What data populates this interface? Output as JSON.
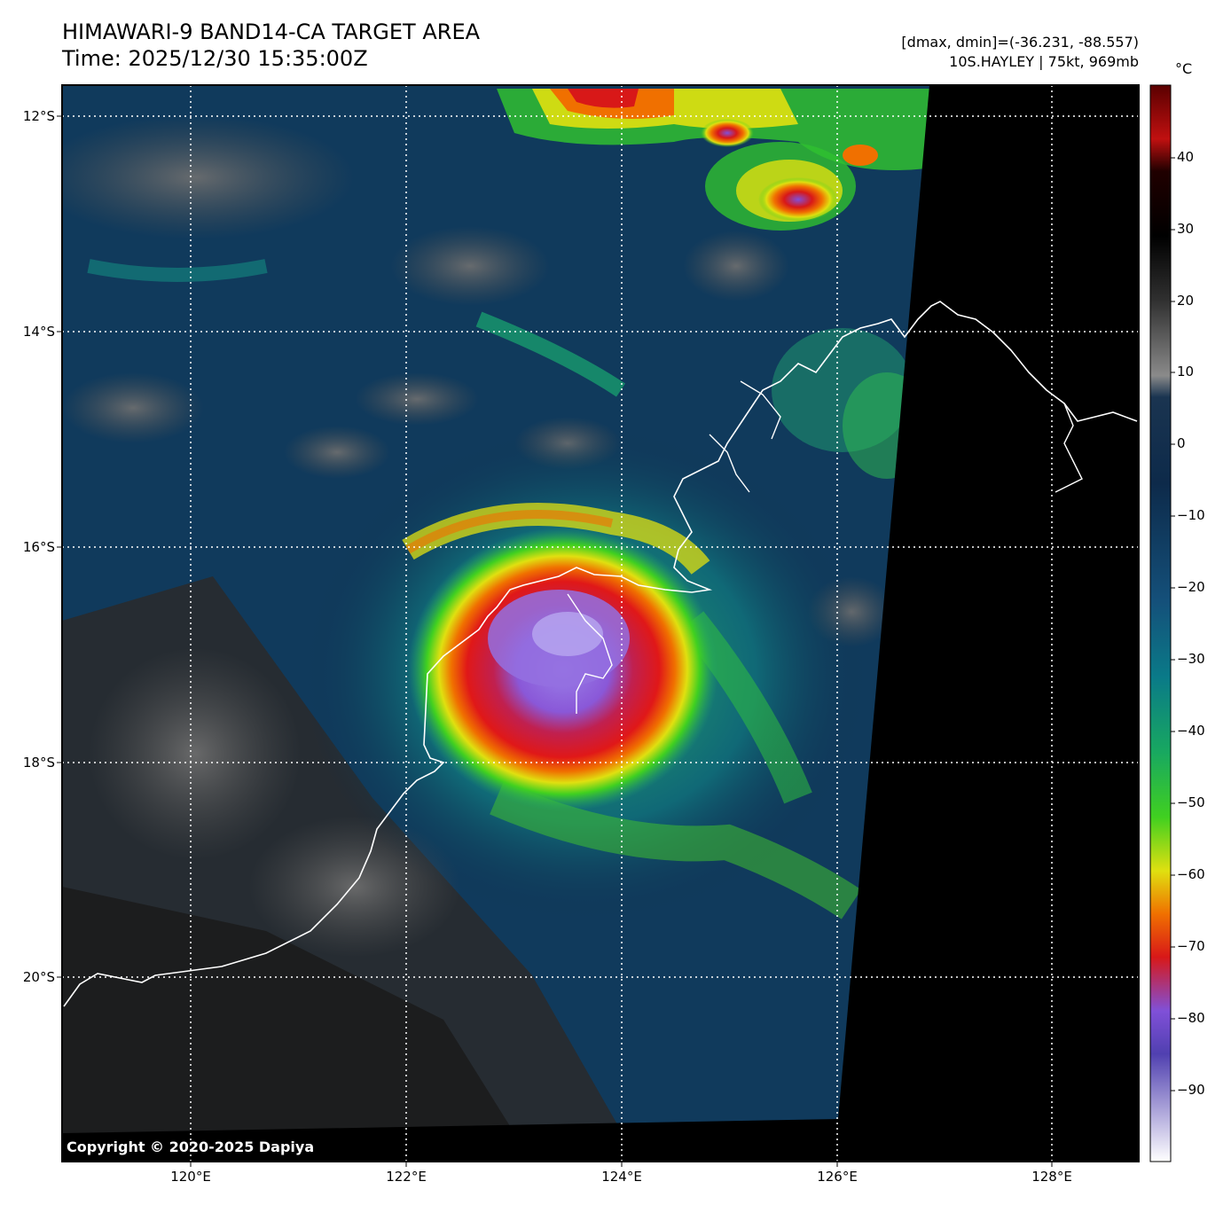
{
  "header": {
    "title_line1": "HIMAWARI-9 BAND14-CA TARGET AREA",
    "title_line2": "Time: 2025/12/30 15:35:00Z",
    "info_line1": "[dmax, dmin]=(-36.231, -88.557)",
    "info_line2": "10S.HAYLEY | 75kt, 969mb"
  },
  "map": {
    "lat_labels": [
      "12°S",
      "14°S",
      "16°S",
      "18°S",
      "20°S"
    ],
    "lon_labels": [
      "120°E",
      "122°E",
      "124°E",
      "126°E",
      "128°E"
    ],
    "copyright": "Copyright © 2020-2025 Dapiya",
    "storm_center": {
      "lat": -17.0,
      "lon": 123.7
    }
  },
  "colorbar": {
    "unit": "°C",
    "tick_labels": [
      "40",
      "30",
      "20",
      "10",
      "0",
      "−10",
      "−20",
      "−30",
      "−40",
      "−50",
      "−60",
      "−70",
      "−80",
      "−90"
    ],
    "colors": {
      "warm_top": "#5a0000",
      "warm_black": "#000000",
      "gray": "#808080",
      "navy": "#0d2a4a",
      "teal": "#0a7a88",
      "green": "#30c030",
      "yellow": "#e0e010",
      "orange": "#f07000",
      "red": "#d81818",
      "purple": "#8050d8",
      "white": "#ffffff"
    }
  }
}
